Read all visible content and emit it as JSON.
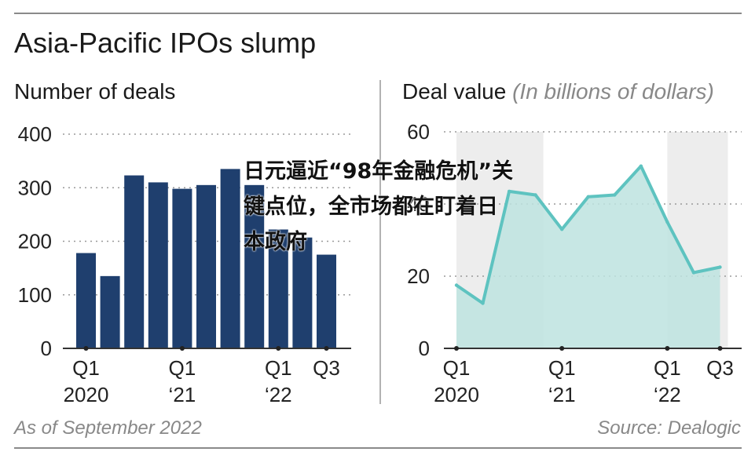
{
  "title": "Asia-Pacific IPOs slump",
  "footer": {
    "left": "As of September 2022",
    "right": "Source: Dealogic"
  },
  "overlay_text": "日元逼近“98年金融危机”关键点位，全市场都在盯着日本政府",
  "chart_data": [
    {
      "type": "bar",
      "title": "Number of deals",
      "unit": "",
      "categories": [
        "Q1 2020",
        "Q2 2020",
        "Q3 2020",
        "Q4 2020",
        "Q1 2021",
        "Q2 2021",
        "Q3 2021",
        "Q4 2021",
        "Q1 2022",
        "Q2 2022",
        "Q3 2022"
      ],
      "values": [
        178,
        135,
        323,
        310,
        298,
        305,
        335,
        305,
        222,
        207,
        175
      ],
      "ylim": [
        0,
        400
      ],
      "yticks": [
        "0",
        "100",
        "200",
        "300",
        "400"
      ],
      "xtick_labels": [
        {
          "line1": "Q1",
          "line2": "2020",
          "index": 0
        },
        {
          "line1": "Q1",
          "line2": "‘21",
          "index": 4
        },
        {
          "line1": "Q1",
          "line2": "‘22",
          "index": 8
        },
        {
          "line1": "Q3",
          "line2": "",
          "index": 10
        }
      ],
      "colors": {
        "bar": "#1f3f6e"
      },
      "grid": true
    },
    {
      "type": "area",
      "title": "Deal value",
      "unit": "(In billions of dollars)",
      "categories": [
        "Q1 2020",
        "Q2 2020",
        "Q3 2020",
        "Q4 2020",
        "Q1 2021",
        "Q2 2021",
        "Q3 2021",
        "Q4 2021",
        "Q1 2022",
        "Q2 2022",
        "Q3 2022"
      ],
      "values": [
        17.5,
        12.5,
        43.5,
        42.5,
        33,
        42,
        42.5,
        50.5,
        35,
        21,
        22.5
      ],
      "ylim": [
        0,
        60
      ],
      "yticks": [
        "0",
        "20",
        "40",
        "60"
      ],
      "xtick_labels": [
        {
          "line1": "Q1",
          "line2": "2020",
          "index": 0
        },
        {
          "line1": "Q1",
          "line2": "‘21",
          "index": 4
        },
        {
          "line1": "Q1",
          "line2": "‘22",
          "index": 8
        },
        {
          "line1": "Q3",
          "line2": "",
          "index": 10
        }
      ],
      "colors": {
        "line": "#5ec3c0",
        "fill": "#bde3df",
        "band": "#ededed"
      },
      "grid": true
    }
  ]
}
